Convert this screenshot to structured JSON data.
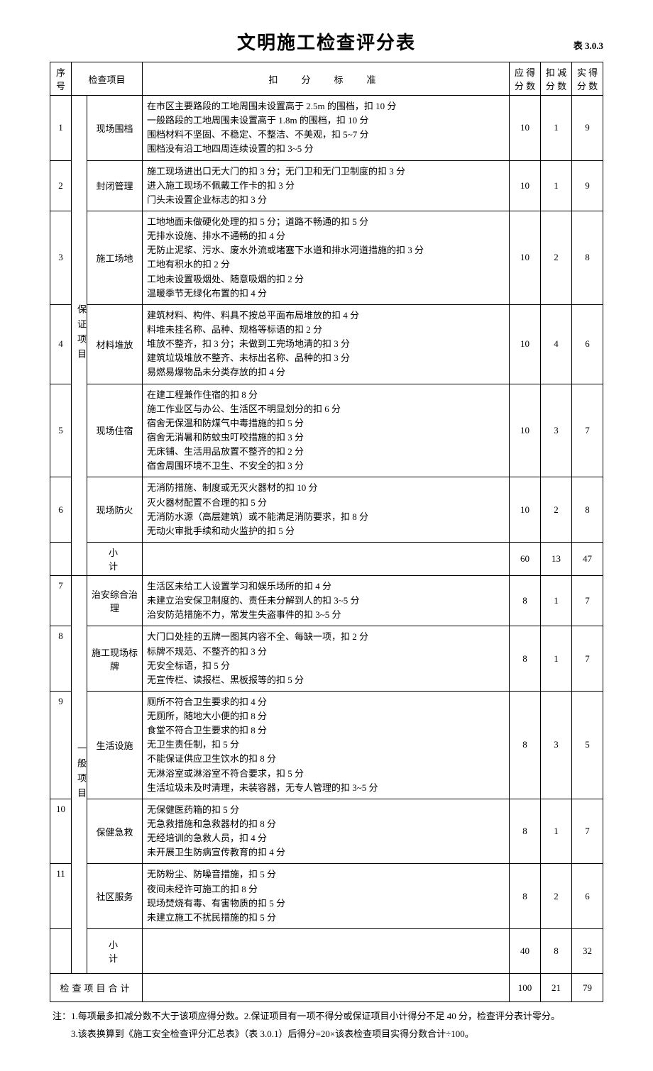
{
  "title": "文明施工检查评分表",
  "tableCode": "表 3.0.3",
  "headers": {
    "num": "序号",
    "item": "检查项目",
    "criteria": "扣　分　标　准",
    "due": "应 得分 数",
    "deduct": "扣 减分 数",
    "actual": "实 得分 数"
  },
  "group1Label": "保证项目",
  "group2Label": "一般项目",
  "rows": [
    {
      "num": "1",
      "item": "现场围档",
      "criteria": "在市区主要路段的工地周围未设置高于 2.5m 的围档，扣 10 分\n一般路段的工地周围未设置高于 1.8m 的围档，扣 10 分\n围档材料不坚固、不稳定、不整洁、不美观，扣 5~7 分\n围档没有沿工地四周连续设置的扣 3~5 分",
      "due": "10",
      "deduct": "1",
      "actual": "9"
    },
    {
      "num": "2",
      "item": "封闭管理",
      "criteria": "施工现场进出口无大门的扣 3 分；无门卫和无门卫制度的扣 3 分\n进入施工现场不佩戴工作卡的扣 3 分\n门头未设置企业标志的扣 3 分",
      "due": "10",
      "deduct": "1",
      "actual": "9"
    },
    {
      "num": "3",
      "item": "施工场地",
      "criteria": "工地地面未做硬化处理的扣 5 分；道路不畅通的扣 5 分\n无排水设施、排水不通畅的扣 4 分\n无防止泥浆、污水、废水外流或堵塞下水道和排水河道措施的扣 3 分\n工地有积水的扣 2 分\n工地未设置吸烟处、随意吸烟的扣 2 分\n温暖季节无绿化布置的扣 4 分",
      "due": "10",
      "deduct": "2",
      "actual": "8"
    },
    {
      "num": "4",
      "item": "材料堆放",
      "criteria": "建筑材料、构件、料具不按总平面布局堆放的扣 4 分\n料堆未挂名称、品种、规格等标语的扣 2 分\n堆放不整齐，扣 3 分；未做到工完场地清的扣 3 分\n建筑垃圾堆放不整齐、未标出名称、品种的扣 3 分\n易燃易爆物品未分类存放的扣 4 分",
      "due": "10",
      "deduct": "4",
      "actual": "6"
    },
    {
      "num": "5",
      "item": "现场住宿",
      "criteria": "在建工程兼作住宿的扣 8 分\n施工作业区与办公、生活区不明显划分的扣 6 分\n宿舍无保温和防煤气中毒措施的扣 5 分\n宿舍无消暑和防蚊虫叮咬措施的扣 3 分\n无床铺、生活用品放置不整齐的扣 2 分\n宿舍周围环境不卫生、不安全的扣 3 分",
      "due": "10",
      "deduct": "3",
      "actual": "7"
    },
    {
      "num": "6",
      "item": "现场防火",
      "criteria": "无消防措施、制度或无灭火器材的扣 10 分\n灭火器材配置不合理的扣 5 分\n无消防水源（高层建筑）或不能满足消防要求，扣 8 分\n无动火审批手续和动火监护的扣 5 分",
      "due": "10",
      "deduct": "2",
      "actual": "8"
    }
  ],
  "subtotal1": {
    "label": "小计",
    "due": "60",
    "deduct": "13",
    "actual": "47"
  },
  "rows2": [
    {
      "num": "7",
      "item": "治安综合治理",
      "criteria": "生活区未给工人设置学习和娱乐场所的扣 4 分\n未建立治安保卫制度的、责任未分解到人的扣 3~5 分\n治安防范措施不力，常发生失盗事件的扣 3~5 分",
      "due": "8",
      "deduct": "1",
      "actual": "7"
    },
    {
      "num": "8",
      "item": "施工现场标牌",
      "criteria": "大门口处挂的五牌一图其内容不全、每缺一项，扣 2 分\n标牌不规范、不整齐的扣 3 分\n无安全标语，扣 5 分\n无宣传栏、读报栏、黑板报等的扣 5 分",
      "due": "8",
      "deduct": "1",
      "actual": "7"
    },
    {
      "num": "9",
      "item": "生活设施",
      "criteria": "厕所不符合卫生要求的扣 4 分\n无厕所，随地大小便的扣 8 分\n食堂不符合卫生要求的扣 8 分\n无卫生责任制，扣 5 分\n不能保证供应卫生饮水的扣 8 分\n无淋浴室或淋浴室不符合要求，扣 5 分\n生活垃圾未及时清理，未装容器，无专人管理的扣 3~5 分",
      "due": "8",
      "deduct": "3",
      "actual": "5"
    },
    {
      "num": "10",
      "item": "保健急救",
      "criteria": "无保健医药箱的扣 5 分\n无急救措施和急救器材的扣 8 分\n无经培训的急救人员，扣 4 分\n未开展卫生防病宣传教育的扣 4 分",
      "due": "8",
      "deduct": "1",
      "actual": "7"
    },
    {
      "num": "11",
      "item": "社区服务",
      "criteria": "无防粉尘、防噪音措施，扣 5 分\n夜间未经许可施工的扣 8 分\n现场焚烧有毒、有害物质的扣 5 分\n未建立施工不扰民措施的扣 5 分",
      "due": "8",
      "deduct": "2",
      "actual": "6"
    }
  ],
  "subtotal2": {
    "label": "小计",
    "due": "40",
    "deduct": "8",
    "actual": "32"
  },
  "grandTotal": {
    "label": "检查项目合计",
    "due": "100",
    "deduct": "21",
    "actual": "79"
  },
  "notes": "注：1.每项最多扣减分数不大于该项应得分数。2.保证项目有一项不得分或保证项目小计得分不足 40 分，检查评分表计零分。\n　　3.该表换算到《施工安全检查评分汇总表》（表 3.0.1）后得分=20×该表检查项目实得分数合计÷100。"
}
